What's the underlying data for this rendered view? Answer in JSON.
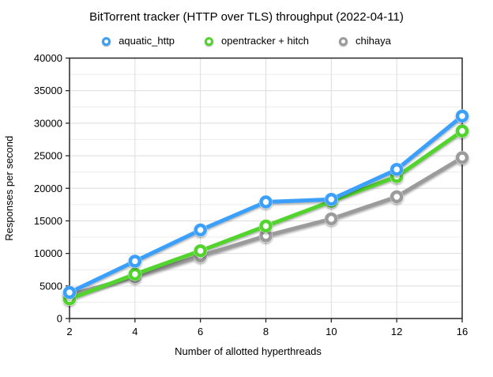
{
  "window": {
    "background": "#ffffff"
  },
  "chart_data": {
    "type": "line",
    "title": "BitTorrent tracker (HTTP over TLS) throughput (2022-04-11)",
    "xlabel": "Number of allotted hyperthreads",
    "ylabel": "Responses per second",
    "x_categories": [
      2,
      4,
      6,
      8,
      10,
      12,
      16
    ],
    "categorical_x_spacing": true,
    "ylim": [
      0,
      40000
    ],
    "y_major_step": 5000,
    "y_minor_step": 2500,
    "grid": true,
    "legend_position": "top",
    "marker_style": "ring",
    "series": [
      {
        "name": "aquatic_http",
        "color": "#3A9FFC",
        "values": [
          4000,
          8800,
          13600,
          17900,
          18300,
          22900,
          31100
        ]
      },
      {
        "name": "opentracker + hitch",
        "color": "#52D32E",
        "values": [
          3000,
          6800,
          10400,
          14200,
          18000,
          21800,
          28800
        ]
      },
      {
        "name": "chihaya",
        "color": "#9B9B9B",
        "values": [
          3600,
          6400,
          9600,
          12700,
          15300,
          18700,
          24700
        ]
      }
    ],
    "axis_color": "#262626",
    "grid_major_color": "#dcdcdc",
    "grid_minor_color": "#ececec",
    "text_color": "#000000"
  }
}
